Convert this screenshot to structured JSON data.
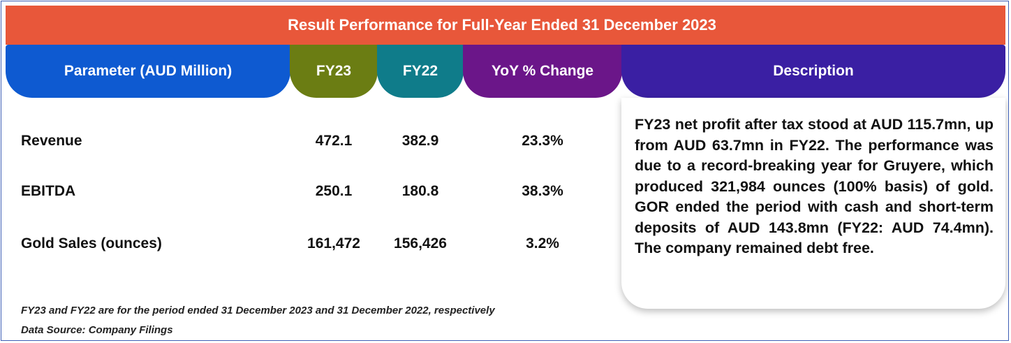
{
  "title": "Result Performance for Full-Year Ended 31 December 2023",
  "headers": {
    "parameter": "Parameter (AUD Million)",
    "fy23": "FY23",
    "fy22": "FY22",
    "yoy": "YoY % Change",
    "description": "Description"
  },
  "rows": [
    {
      "label": "Revenue",
      "fy23": "472.1",
      "fy22": "382.9",
      "yoy": "23.3%"
    },
    {
      "label": "EBITDA",
      "fy23": "250.1",
      "fy22": "180.8",
      "yoy": "38.3%"
    },
    {
      "label": "Gold Sales (ounces)",
      "fy23": "161,472",
      "fy22": "156,426",
      "yoy": "3.2%"
    }
  ],
  "description": "FY23 net profit after tax stood at AUD 115.7mn, up from AUD 63.7mn in FY22. The performance was due to a record-breaking year for Gruyere, which produced 321,984 ounces (100% basis) of gold. GOR ended the period with cash and short-term deposits of AUD 143.8mn (FY22: AUD 74.4mn). The company remained debt free.",
  "footnotes": {
    "period": "FY23 and FY22 are for the period ended 31 December 2023 and 31 December 2022, respectively",
    "source": "Data Source: Company Filings"
  },
  "colors": {
    "title_bar": "#e8573a",
    "parameter_header": "#0e5ad1",
    "fy23_header": "#6b7d13",
    "fy22_header": "#0f7c8a",
    "yoy_header": "#6b1689",
    "description_header": "#3a1fa3"
  }
}
